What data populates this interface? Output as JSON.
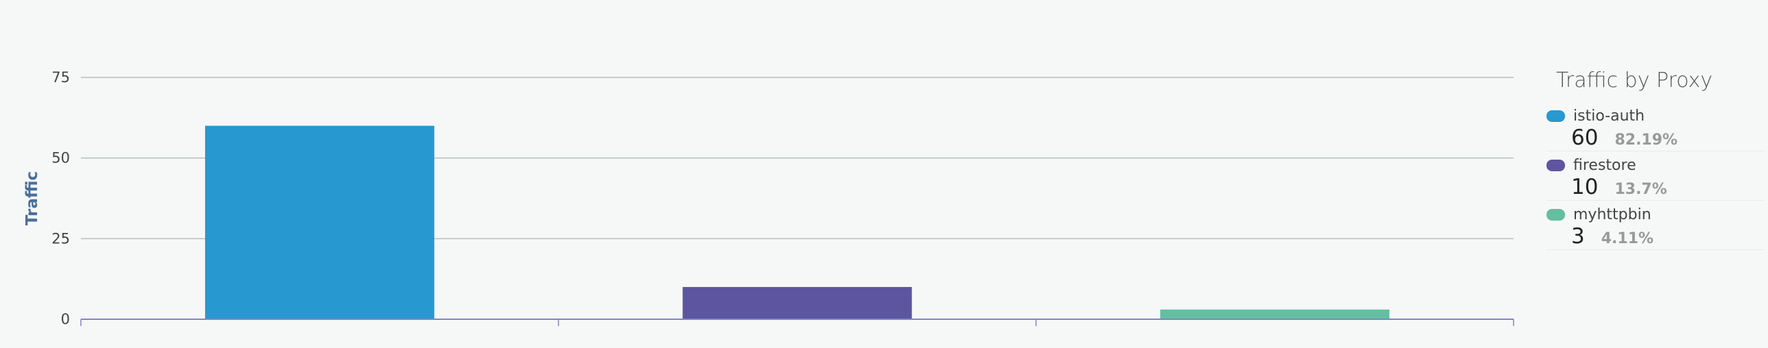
{
  "chart_data": {
    "type": "bar",
    "title": "Traffic by Proxy",
    "ylabel": "Traffic",
    "xlabel": "",
    "ylim": [
      0,
      75
    ],
    "yticks": [
      0,
      25,
      50,
      75
    ],
    "grid": true,
    "legend_position": "right",
    "categories": [
      "istio-auth",
      "firestore",
      "myhttpbin"
    ],
    "values": [
      60,
      10,
      3
    ],
    "colors": [
      "#2898d1",
      "#5e55a0",
      "#63bfa0"
    ]
  },
  "legend": {
    "title": "Traffic by Proxy",
    "items": [
      {
        "name": "istio-auth",
        "value": "60",
        "percent": "82.19%",
        "color": "#2898d1"
      },
      {
        "name": "firestore",
        "value": "10",
        "percent": "13.7%",
        "color": "#5e55a0"
      },
      {
        "name": "myhttpbin",
        "value": "3",
        "percent": "4.11%",
        "color": "#63bfa0"
      }
    ]
  }
}
